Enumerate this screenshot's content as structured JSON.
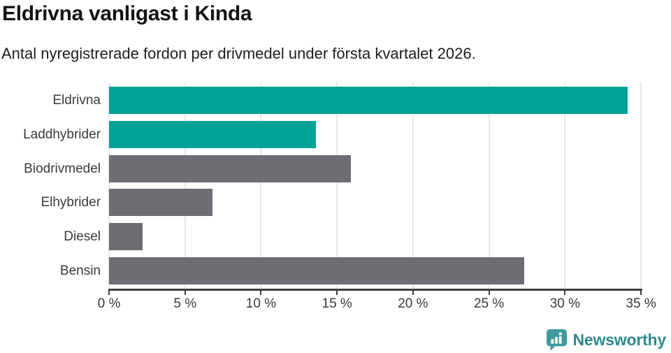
{
  "title": "Eldrivna vanligast i Kinda",
  "subtitle": "Antal nyregistrerade fordon per drivmedel under första kvartalet 2026.",
  "chart_data": {
    "type": "bar",
    "orientation": "horizontal",
    "title": "Eldrivna vanligast i Kinda",
    "subtitle": "Antal nyregistrerade fordon per drivmedel under första kvartalet 2026.",
    "categories": [
      "Eldrivna",
      "Laddhybrider",
      "Biodrivmedel",
      "Elhybrider",
      "Diesel",
      "Bensin"
    ],
    "values": [
      34.1,
      13.6,
      15.9,
      6.8,
      2.2,
      27.3
    ],
    "unit": "%",
    "xlim": [
      0,
      35
    ],
    "x_ticks": [
      0,
      5,
      10,
      15,
      20,
      25,
      30,
      35
    ],
    "x_tick_labels": [
      "0 %",
      "5 %",
      "10 %",
      "15 %",
      "20 %",
      "25 %",
      "30 %",
      "35 %"
    ],
    "bar_colors": [
      "#00a296",
      "#00a296",
      "#6e6d73",
      "#6e6d73",
      "#6e6d73",
      "#6e6d73"
    ],
    "grid": true,
    "legend": false
  },
  "colors": {
    "highlight_teal": "#00a296",
    "neutral_gray": "#6e6d73",
    "gridline": "#e7e7e7",
    "axis": "#3e3e3e",
    "label_text": "#3a3a3a",
    "title_text": "#141414"
  },
  "branding": {
    "label": "Newsworthy",
    "text_color": "#2e8b8d",
    "icon_color": "#3f9a9c",
    "icon": "newsworthy-speech-bubble-bar-chart-icon"
  }
}
